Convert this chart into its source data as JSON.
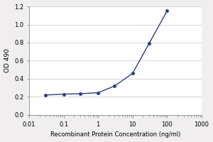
{
  "x_values": [
    0.03,
    0.1,
    0.3,
    1,
    3,
    10,
    30,
    100
  ],
  "y_values": [
    0.22,
    0.23,
    0.235,
    0.245,
    0.32,
    0.46,
    0.79,
    1.15
  ],
  "line_color": "#2e3a87",
  "marker_color": "#2e3a87",
  "marker_style": "o",
  "marker_size": 3,
  "line_width": 1.0,
  "xlabel": "Recombinant Protein Concentration (ng/ml)",
  "ylabel": "OD 490",
  "xlim_log": [
    0.01,
    1000
  ],
  "ylim": [
    0,
    1.2
  ],
  "yticks": [
    0,
    0.2,
    0.4,
    0.6,
    0.8,
    1.0,
    1.2
  ],
  "xticks": [
    0.01,
    0.1,
    1,
    10,
    100,
    1000
  ],
  "xtick_labels": [
    "0.01",
    "0.1",
    "1",
    "10",
    "100",
    "1000"
  ],
  "grid_color": "#d0d0d0",
  "plot_bg_color": "#ffffff",
  "fig_bg_color": "#f0eeee",
  "xlabel_fontsize": 6.0,
  "ylabel_fontsize": 6.5,
  "tick_fontsize": 6.0
}
